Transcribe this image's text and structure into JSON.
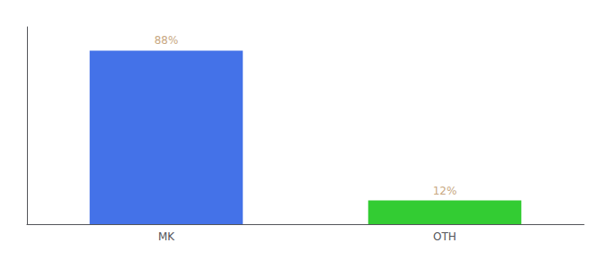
{
  "chart_data": {
    "type": "bar",
    "categories": [
      "MK",
      "OTH"
    ],
    "values": [
      88,
      12
    ],
    "value_labels": [
      "88%",
      "12%"
    ],
    "colors": [
      "#4472e8",
      "#33cc33"
    ],
    "ylim": [
      0,
      100
    ],
    "grid": false,
    "data_labels": true,
    "tick_labels": "x"
  }
}
